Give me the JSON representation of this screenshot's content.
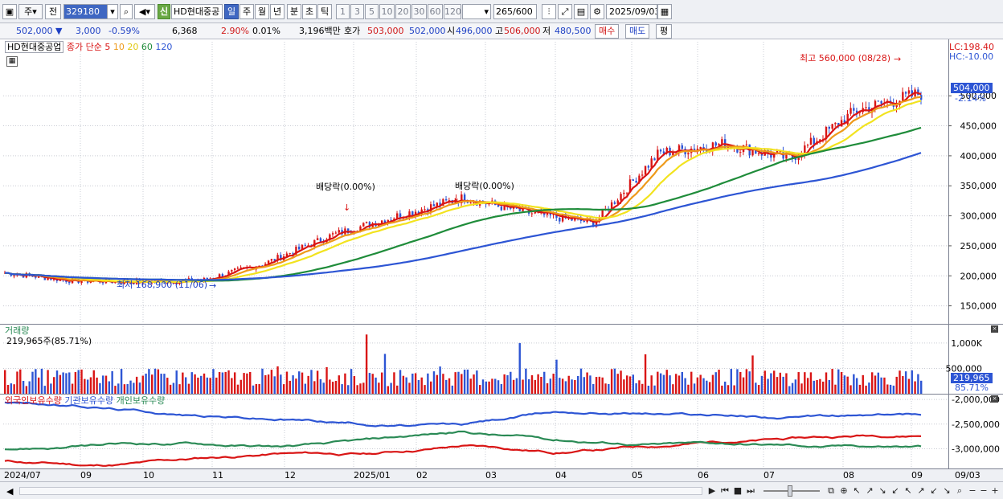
{
  "toolbar": {
    "type_select": "주",
    "prev_label": "전",
    "stock_code": "329180",
    "stock_name": "HD현대중공",
    "shin_label": "신",
    "periods": [
      "일",
      "주",
      "월",
      "년",
      "분",
      "초",
      "틱"
    ],
    "active_period": "일",
    "intervals": [
      "1",
      "3",
      "5",
      "10",
      "20",
      "30",
      "60",
      "120"
    ],
    "count_value": "265",
    "count_max": "/600",
    "date_value": "2025/09/03"
  },
  "quote": {
    "price": "502,000",
    "change": "3,000",
    "change_pct": "-0.59%",
    "volume": "6,368",
    "volume_pct": "2.90%",
    "turnover_pct": "0.01%",
    "amount": "3,196백만",
    "ask_label": "호가",
    "ask_1": "503,000",
    "ask_2": "502,000",
    "open_label": "시",
    "open": "496,000",
    "high_label": "고",
    "high": "506,000",
    "low_label": "저",
    "low": "480,500",
    "buy_button": "매수",
    "sell_button": "매도",
    "eval_button": "평"
  },
  "price_panel": {
    "stock_label": "HD현대중공업",
    "indicator_label": "종가 단순",
    "ma_periods": [
      "5",
      "10",
      "20",
      "60",
      "120"
    ],
    "ma_colors": [
      "#d91515",
      "#ee9a1a",
      "#f2e31f",
      "#1f8c3a",
      "#2d55d4"
    ],
    "lc_label": "LC:198.40",
    "hc_label": "HC:-10.00",
    "current_price_tag": "504,000",
    "current_pct_tag": "-2.14%",
    "high_annotation": "최고 560,000 (08/28)",
    "low_annotation": "최저 168,900 (11/06)",
    "dividend_annotations": [
      "배당락(0.00%)",
      "배당락(0.00%)"
    ],
    "y_ticks": [
      "500,000",
      "450,000",
      "400,000",
      "350,000",
      "300,000",
      "250,000",
      "200,000",
      "150,000"
    ]
  },
  "volume_panel": {
    "title": "거래량",
    "value_label": "219,965주(85.71%)",
    "y_ticks": [
      "1,000K",
      "500,000"
    ],
    "current_tag": "219,965",
    "current_pct_tag": "85.71%"
  },
  "holdings_panel": {
    "series_labels": [
      "외국인보유수량",
      "기관보유수량",
      "개인보유수량"
    ],
    "series_colors": [
      "#d91515",
      "#2d55d4",
      "#2a8a55"
    ],
    "y_ticks": [
      "-2,000,000",
      "-2,500,000",
      "-3,000,000"
    ]
  },
  "date_axis": {
    "labels": [
      "2024/07",
      "09",
      "10",
      "11",
      "12",
      "2025/01",
      "02",
      "03",
      "04",
      "05",
      "06",
      "07",
      "08",
      "09",
      "09/03"
    ]
  },
  "chart_data": {
    "type": "line",
    "title": "",
    "xlabel": "",
    "ylabel": "",
    "x_range": [
      "2024/07",
      "2025/09/03"
    ],
    "ylim": [
      120000,
      590000
    ],
    "grid": true,
    "monthly_close_est": {
      "x": [
        "2024/07",
        "2024/08",
        "2024/09",
        "2024/10",
        "2024/11",
        "2024/12",
        "2025/01",
        "2025/02",
        "2025/03",
        "2025/04",
        "2025/05",
        "2025/06",
        "2025/07",
        "2025/08",
        "2025/09"
      ],
      "values": [
        205000,
        192000,
        190000,
        192000,
        222000,
        268000,
        300000,
        330000,
        305000,
        288000,
        405000,
        420000,
        395000,
        475000,
        504000
      ]
    },
    "series": [
      {
        "name": "5",
        "color": "#d91515"
      },
      {
        "name": "10",
        "color": "#ee9a1a"
      },
      {
        "name": "20",
        "color": "#f2e31f"
      },
      {
        "name": "60",
        "color": "#1f8c3a"
      },
      {
        "name": "120",
        "color": "#2d55d4"
      }
    ],
    "annotations": [
      {
        "text": "최고 560,000 (08/28)",
        "x": "2025/08/28",
        "y": 560000
      },
      {
        "text": "최저 168,900 (11/06)",
        "x": "2024/11/06",
        "y": 168900
      }
    ]
  }
}
